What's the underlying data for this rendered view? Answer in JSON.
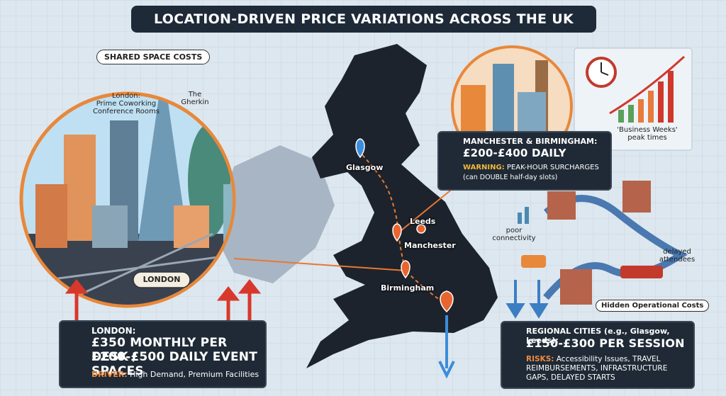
{
  "header": {
    "title": "LOCATION-DRIVEN PRICE VARIATIONS ACROSS THE UK"
  },
  "london": {
    "heading": "SHARED SPACE COSTS",
    "callout": "London:\nPrime Coworking\nConference Rooms",
    "landmark": "The\nGherkin",
    "area_label": "LONDON"
  },
  "map": {
    "cities": [
      "Glasgow",
      "Leeds",
      "Manchester",
      "Birmingham"
    ]
  },
  "london_box": {
    "heading": "LONDON:",
    "line1": "£350 MONTHLY PER DESK /",
    "line2": "£200-£500 DAILY EVENT SPACES",
    "driver_label": "DRIVER:",
    "driver_text": "High Demand, Premium Facilities"
  },
  "manchester_box": {
    "heading": "MANCHESTER & BIRMINGHAM:",
    "price": "£200-£400 DAILY",
    "warning_label": "WARNING:",
    "warning_text": "PEAK-HOUR SURCHARGES",
    "note": "(can DOUBLE half-day slots)"
  },
  "peak_card": {
    "caption": "'Business Weeks'\npeak times"
  },
  "hidden_costs": {
    "labels": [
      "poor\nconnectivity",
      "delayed\nattendees"
    ],
    "heading": "Hidden Operational Costs"
  },
  "regional_box": {
    "heading": "REGIONAL CITIES (e.g., Glasgow, Leeds):",
    "price": "£150-£300 PER SESSION",
    "risks_label": "RISKS:",
    "risks_text": "Accessibility Issues, TRAVEL REIMBURSEMENTS, INFRASTRUCTURE GAPS, DELAYED STARTS"
  }
}
